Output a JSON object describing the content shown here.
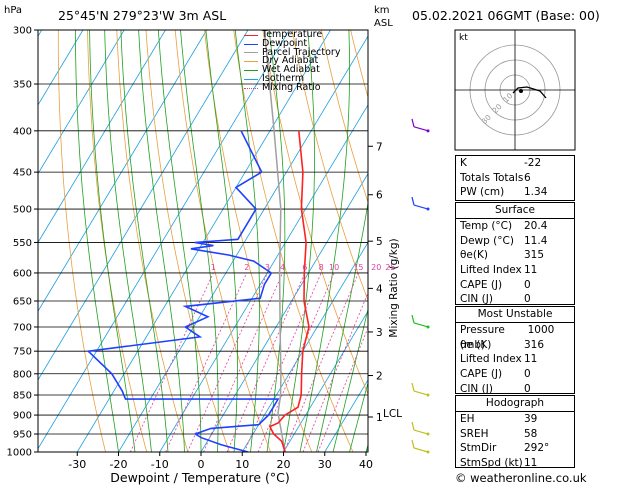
{
  "header": {
    "hpa_label": "hPa",
    "location": "25°45'N  279°23'W  3m  ASL",
    "km_label": "km",
    "asl_label": "ASL",
    "datetime": "05.02.2021  06GMT  (Base: 00)"
  },
  "chart_data": {
    "type": "skew-t",
    "pressure_levels": [
      300,
      350,
      400,
      450,
      500,
      550,
      600,
      650,
      700,
      750,
      800,
      850,
      900,
      950,
      1000
    ],
    "temperature_ticks": [
      -30,
      -20,
      -10,
      0,
      10,
      20,
      30,
      40
    ],
    "xlabel": "Dewpoint / Temperature (°C)",
    "km_ticks": [
      {
        "label": "7",
        "p": 418
      },
      {
        "label": "6",
        "p": 480
      },
      {
        "label": "5",
        "p": 548
      },
      {
        "label": "4",
        "p": 627
      },
      {
        "label": "3",
        "p": 710
      },
      {
        "label": "2",
        "p": 804
      },
      {
        "label": "1",
        "p": 905
      }
    ],
    "lcl_label": "LCL",
    "lcl_p": 895,
    "mixing_ratio_label": "Mixing Ratio (g/kg)",
    "mixing_ratios": [
      "1",
      "2",
      "3",
      "4",
      "6",
      "8",
      "10",
      "15",
      "20",
      "25"
    ],
    "legend": [
      "Temperature",
      "Dewpoint",
      "Parcel Trajectory",
      "Dry Adiabat",
      "Wet Adiabat",
      "Isotherm",
      "Mixing Ratio"
    ],
    "temperature": [
      [
        1000,
        20.4
      ],
      [
        970,
        18
      ],
      [
        950,
        15
      ],
      [
        930,
        13
      ],
      [
        920,
        14.5
      ],
      [
        900,
        15
      ],
      [
        880,
        17
      ],
      [
        850,
        16
      ],
      [
        800,
        13
      ],
      [
        750,
        10
      ],
      [
        700,
        8
      ],
      [
        650,
        3
      ],
      [
        600,
        -1
      ],
      [
        550,
        -5
      ],
      [
        500,
        -11
      ],
      [
        450,
        -16
      ],
      [
        400,
        -23
      ]
    ],
    "dewpoint": [
      [
        1000,
        11.4
      ],
      [
        980,
        4
      ],
      [
        960,
        -2
      ],
      [
        950,
        -4
      ],
      [
        935,
        -1
      ],
      [
        925,
        10
      ],
      [
        900,
        11
      ],
      [
        880,
        11
      ],
      [
        860,
        11
      ],
      [
        860,
        -26
      ],
      [
        840,
        -28
      ],
      [
        800,
        -33
      ],
      [
        750,
        -42
      ],
      [
        720,
        -17
      ],
      [
        700,
        -22
      ],
      [
        680,
        -18
      ],
      [
        660,
        -25
      ],
      [
        645,
        -8
      ],
      [
        620,
        -9
      ],
      [
        600,
        -9
      ],
      [
        580,
        -15
      ],
      [
        570,
        -22
      ],
      [
        560,
        -32
      ],
      [
        555,
        -27
      ],
      [
        550,
        -32
      ],
      [
        545,
        -22
      ],
      [
        500,
        -22
      ],
      [
        470,
        -30
      ],
      [
        450,
        -26
      ],
      [
        400,
        -37
      ]
    ],
    "parcel": [
      [
        1000,
        20.4
      ],
      [
        895,
        13
      ],
      [
        850,
        11
      ],
      [
        800,
        8
      ],
      [
        700,
        1
      ],
      [
        600,
        -7
      ],
      [
        500,
        -16
      ],
      [
        400,
        -29
      ],
      [
        300,
        -46
      ]
    ]
  },
  "hodograph": {
    "unit": "kt",
    "ring_labels": [
      "10",
      "20",
      "30"
    ]
  },
  "indices": [
    {
      "label": "K",
      "value": "-22"
    },
    {
      "label": "Totals Totals",
      "value": "6"
    },
    {
      "label": "PW (cm)",
      "value": "1.34"
    }
  ],
  "surface": {
    "title": "Surface",
    "rows": [
      {
        "label": "Temp (°C)",
        "value": "20.4"
      },
      {
        "label": "Dewp (°C)",
        "value": "11.4"
      },
      {
        "label": "θe(K)",
        "value": "315"
      },
      {
        "label": "Lifted Index",
        "value": "11"
      },
      {
        "label": "CAPE (J)",
        "value": "0"
      },
      {
        "label": "CIN (J)",
        "value": "0"
      }
    ]
  },
  "most_unstable": {
    "title": "Most Unstable",
    "rows": [
      {
        "label": "Pressure (mb)",
        "value": "1000"
      },
      {
        "label": "θe (K)",
        "value": "316"
      },
      {
        "label": "Lifted Index",
        "value": "11"
      },
      {
        "label": "CAPE (J)",
        "value": "0"
      },
      {
        "label": "CIN (J)",
        "value": "0"
      }
    ]
  },
  "hodograph_table": {
    "title": "Hodograph",
    "rows": [
      {
        "label": "EH",
        "value": "39"
      },
      {
        "label": "SREH",
        "value": "58"
      },
      {
        "label": "StmDir",
        "value": "292°"
      },
      {
        "label": "StmSpd (kt)",
        "value": "11"
      }
    ]
  },
  "footer": {
    "copyright": "© weatheronline.co.uk"
  },
  "colors": {
    "temperature": "#ff2020",
    "dewpoint": "#2040ff",
    "parcel": "#a0a0a0",
    "dry_adiabat": "#e8a040",
    "wet_adiabat": "#20a020",
    "isotherm": "#20a0e0",
    "mixing_ratio": "#e040a0"
  }
}
